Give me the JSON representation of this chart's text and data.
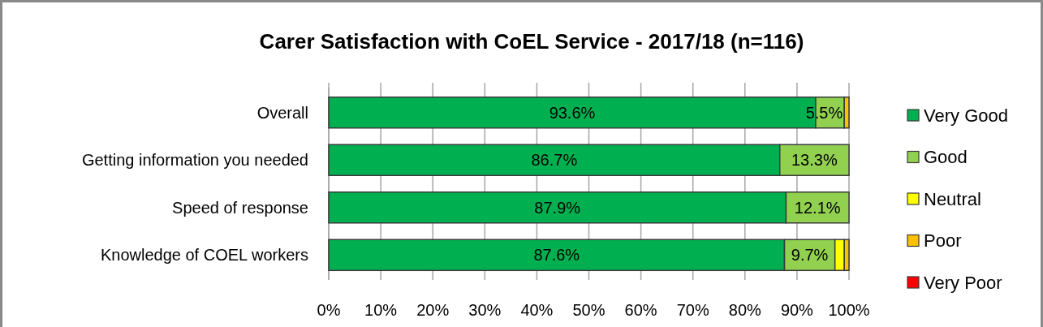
{
  "chart_data": {
    "type": "bar",
    "orientation": "horizontal",
    "stacked": true,
    "title": "Carer Satisfaction with CoEL Service - 2017/18 (n=116)",
    "categories": [
      "Overall",
      "Getting information you needed",
      "Speed of response",
      "Knowledge of COEL workers"
    ],
    "series": [
      {
        "name": "Very Good",
        "color": "#00b050",
        "values": [
          93.6,
          86.7,
          87.9,
          87.6
        ],
        "value_labels": [
          "93.6%",
          "86.7%",
          "87.9%",
          "87.6%"
        ]
      },
      {
        "name": "Good",
        "color": "#92d050",
        "values": [
          5.5,
          13.3,
          12.1,
          9.7
        ],
        "value_labels": [
          "5.5%",
          "13.3%",
          "12.1%",
          "9.7%"
        ]
      },
      {
        "name": "Neutral",
        "color": "#ffff00",
        "values": [
          0,
          0,
          0,
          1.8
        ],
        "value_labels": [
          null,
          null,
          null,
          null
        ]
      },
      {
        "name": "Poor",
        "color": "#ffc000",
        "values": [
          0.9,
          0,
          0,
          0.9
        ],
        "value_labels": [
          null,
          null,
          null,
          null
        ]
      },
      {
        "name": "Very Poor",
        "color": "#ff0000",
        "values": [
          0,
          0,
          0,
          0
        ],
        "value_labels": [
          null,
          null,
          null,
          null
        ]
      }
    ],
    "xlim": [
      0,
      100
    ],
    "xticks": [
      {
        "value": 0,
        "label": "0%"
      },
      {
        "value": 10,
        "label": "10%"
      },
      {
        "value": 20,
        "label": "20%"
      },
      {
        "value": 30,
        "label": "30%"
      },
      {
        "value": 40,
        "label": "40%"
      },
      {
        "value": 50,
        "label": "50%"
      },
      {
        "value": 60,
        "label": "60%"
      },
      {
        "value": 70,
        "label": "70%"
      },
      {
        "value": 80,
        "label": "80%"
      },
      {
        "value": 90,
        "label": "90%"
      },
      {
        "value": 100,
        "label": "100%"
      }
    ],
    "grid": "x",
    "legend": "right"
  }
}
